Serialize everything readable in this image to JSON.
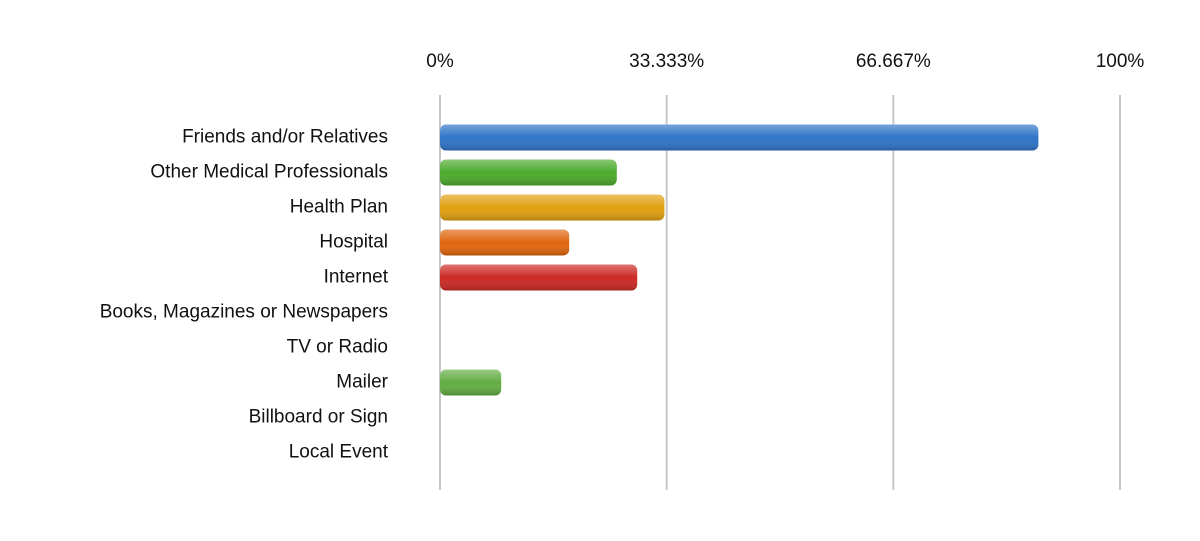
{
  "chart_data": {
    "type": "bar",
    "orientation": "horizontal",
    "categories": [
      "Friends and/or Relatives",
      "Other Medical Professionals",
      "Health Plan",
      "Hospital",
      "Internet",
      "Books, Magazines or Newspapers",
      "TV or Radio",
      "Mailer",
      "Billboard or Sign",
      "Local Event"
    ],
    "values": [
      88,
      26,
      33,
      19,
      29,
      0,
      0,
      9,
      0,
      0
    ],
    "colors": [
      "#2f74c8",
      "#4caa2c",
      "#e0a010",
      "#e0660e",
      "#cc2a26",
      "#888888",
      "#888888",
      "#62ad43",
      "#888888",
      "#888888"
    ],
    "xlim": [
      0,
      100
    ],
    "xticks": [
      {
        "value": 0,
        "label": "0%"
      },
      {
        "value": 33.333,
        "label": "33.333%"
      },
      {
        "value": 66.667,
        "label": "66.667%"
      },
      {
        "value": 100,
        "label": "100%"
      }
    ],
    "grid": true
  }
}
